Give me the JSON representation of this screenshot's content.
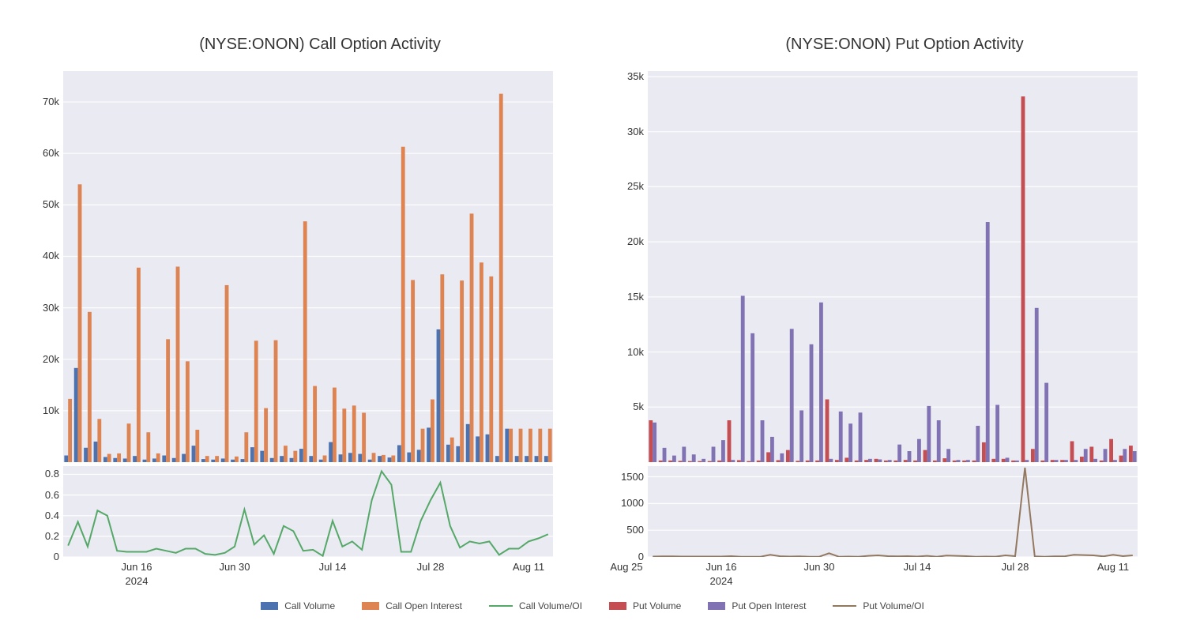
{
  "layout": {
    "figure_w": 1500,
    "figure_h": 800,
    "title_fontsize": 20,
    "axis_label_fontsize": 12,
    "tick_fontsize": 13,
    "plot_bg": "#eaeaf2",
    "grid_color": "#fdfdfe",
    "tick_color": "#333333",
    "bar_group_width": 0.78
  },
  "colors": {
    "call_volume": "#4c72b0",
    "call_oi": "#dd8452",
    "call_ratio": "#55a868",
    "put_volume": "#c44e52",
    "put_oi": "#8172b3",
    "put_ratio": "#937860"
  },
  "dates": {
    "n": 50,
    "year_label": "2024",
    "xtick_indices": [
      7,
      17,
      27,
      37,
      47
    ],
    "xtick_labels": [
      "Jun 16",
      "Jun 30",
      "Jul 14",
      "Jul 28",
      "Aug 11",
      "Aug 25"
    ],
    "xtick_positions_full": [
      7,
      17,
      27,
      37,
      47,
      57
    ]
  },
  "call": {
    "title": "(NYSE:ONON) Call Option Activity",
    "ylim_bar": [
      0,
      76000
    ],
    "yticks_bar": [
      10000,
      20000,
      30000,
      40000,
      50000,
      60000,
      70000
    ],
    "yticklabels_bar": [
      "10k",
      "20k",
      "30k",
      "40k",
      "50k",
      "60k",
      "70k"
    ],
    "ylim_line": [
      0,
      0.88
    ],
    "yticks_line": [
      0,
      0.2,
      0.4,
      0.6,
      0.8
    ],
    "yticklabels_line": [
      "0",
      "0.2",
      "0.4",
      "0.6",
      "0.8"
    ],
    "volume": [
      1300,
      18300,
      2800,
      4000,
      1000,
      800,
      700,
      1200,
      500,
      700,
      1300,
      800,
      1600,
      3200,
      600,
      500,
      700,
      500,
      600,
      2900,
      2200,
      800,
      1200,
      800,
      2600,
      1200,
      500,
      3900,
      1500,
      1800,
      1600,
      500,
      1200,
      900,
      3300,
      1900,
      2400,
      6700,
      25800,
      3400,
      3100,
      7400,
      5000,
      5400,
      1200,
      6500,
      1200,
      1200,
      1200,
      1200
    ],
    "open_interest": [
      12300,
      54000,
      29200,
      8400,
      1600,
      1700,
      7500,
      37800,
      5800,
      1700,
      23900,
      38000,
      19600,
      6300,
      1200,
      1200,
      34400,
      1100,
      5800,
      23600,
      10500,
      23700,
      3200,
      2200,
      46800,
      14800,
      1300,
      14500,
      10400,
      11000,
      9600,
      1800,
      1400,
      1300,
      61300,
      35400,
      6500,
      12200,
      36500,
      4800,
      35300,
      48300,
      38800,
      36100,
      71600,
      6500,
      6500,
      6500,
      6500,
      6500
    ],
    "ratio": [
      0.11,
      0.34,
      0.1,
      0.45,
      0.4,
      0.06,
      0.05,
      0.05,
      0.05,
      0.08,
      0.06,
      0.04,
      0.08,
      0.08,
      0.03,
      0.02,
      0.04,
      0.1,
      0.46,
      0.12,
      0.21,
      0.03,
      0.3,
      0.25,
      0.06,
      0.07,
      0.01,
      0.35,
      0.1,
      0.15,
      0.07,
      0.55,
      0.83,
      0.7,
      0.05,
      0.05,
      0.35,
      0.55,
      0.72,
      0.3,
      0.09,
      0.15,
      0.13,
      0.15,
      0.02,
      0.08,
      0.08,
      0.15,
      0.18,
      0.22
    ]
  },
  "put": {
    "title": "(NYSE:ONON) Put Option Activity",
    "ylim_bar": [
      0,
      35500
    ],
    "yticks_bar": [
      5000,
      10000,
      15000,
      20000,
      25000,
      30000,
      35000
    ],
    "yticklabels_bar": [
      "5k",
      "10k",
      "15k",
      "20k",
      "25k",
      "30k",
      "35k"
    ],
    "ylim_line": [
      0,
      1700
    ],
    "yticks_line": [
      0,
      500,
      1000,
      1500
    ],
    "yticklabels_line": [
      "0",
      "500",
      "1000",
      "1500"
    ],
    "volume": [
      3800,
      150,
      150,
      120,
      100,
      100,
      100,
      150,
      3800,
      180,
      100,
      150,
      900,
      180,
      1100,
      120,
      150,
      150,
      5700,
      200,
      400,
      150,
      200,
      300,
      150,
      150,
      200,
      150,
      1100,
      150,
      350,
      150,
      150,
      150,
      1800,
      300,
      300,
      150,
      33200,
      1200,
      150,
      200,
      200,
      1900,
      500,
      1400,
      150,
      2100,
      600,
      1500
    ],
    "open_interest": [
      3600,
      1300,
      600,
      1400,
      700,
      300,
      1400,
      2000,
      200,
      15100,
      11700,
      3800,
      2300,
      800,
      12100,
      4700,
      10700,
      14500,
      300,
      4600,
      3500,
      4500,
      300,
      250,
      200,
      1600,
      1000,
      2100,
      5100,
      3800,
      1200,
      200,
      200,
      3300,
      21800,
      5200,
      400,
      150,
      200,
      14000,
      7200,
      200,
      200,
      200,
      1200,
      300,
      1200,
      200,
      1200,
      1000
    ],
    "ratio": [
      8,
      10,
      12,
      8,
      7,
      7,
      7,
      8,
      15,
      5,
      5,
      5,
      40,
      14,
      8,
      10,
      5,
      5,
      70,
      5,
      8,
      5,
      20,
      30,
      15,
      10,
      15,
      8,
      20,
      5,
      25,
      20,
      15,
      5,
      8,
      6,
      30,
      15,
      1670,
      10,
      5,
      10,
      10,
      40,
      35,
      30,
      10,
      40,
      15,
      30
    ]
  },
  "legend": [
    {
      "label": "Call Volume",
      "kind": "bar",
      "colorkey": "call_volume"
    },
    {
      "label": "Call Open Interest",
      "kind": "bar",
      "colorkey": "call_oi"
    },
    {
      "label": "Call Volume/OI",
      "kind": "line",
      "colorkey": "call_ratio"
    },
    {
      "label": "Put Volume",
      "kind": "bar",
      "colorkey": "put_volume"
    },
    {
      "label": "Put Open Interest",
      "kind": "bar",
      "colorkey": "put_oi"
    },
    {
      "label": "Put Volume/OI",
      "kind": "line",
      "colorkey": "put_ratio"
    }
  ]
}
